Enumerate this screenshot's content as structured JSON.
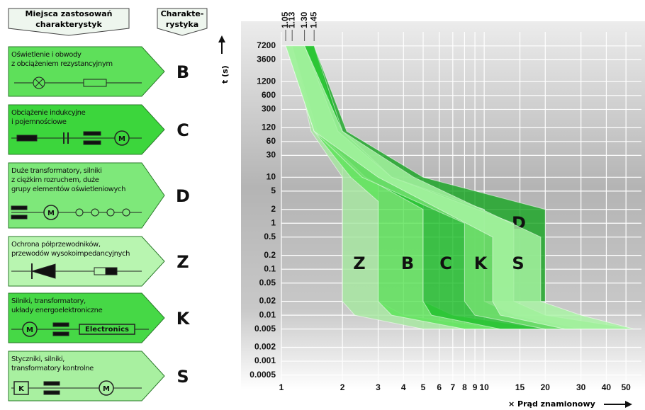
{
  "legend_panel": {
    "header_places": [
      "Miejsca zastosowań",
      "charakterystyk"
    ],
    "header_char": [
      "Charakte-",
      "rystyka"
    ],
    "rows": [
      {
        "lines": [
          "Oświetlenie i obwody",
          "z obciążeniem rezystancyjnym"
        ],
        "letter": "B",
        "icon_texts": []
      },
      {
        "lines": [
          "Obciążenie indukcyjne",
          "i pojemnościowe"
        ],
        "letter": "C",
        "icon_texts": [
          "M"
        ]
      },
      {
        "lines": [
          "Duże transformatory, silniki",
          "z ciężkim rozruchem, duże",
          "grupy elementów oświetleniowych"
        ],
        "letter": "D",
        "icon_texts": [
          "M"
        ]
      },
      {
        "lines": [
          "Ochrona półprzewodników,",
          "przewodów wysokoimpedancyjnych"
        ],
        "letter": "Z",
        "icon_texts": []
      },
      {
        "lines": [
          "Silniki, transformatory,",
          "układy energoelektroniczne"
        ],
        "letter": "K",
        "icon_texts": [
          "M",
          "Electronics"
        ]
      },
      {
        "lines": [
          "Styczniki, silniki,",
          "transformatory kontrolne"
        ],
        "letter": "S",
        "icon_texts": [
          "K",
          "M"
        ]
      }
    ]
  },
  "chart_data": {
    "type": "band",
    "y_label": "t (s)",
    "x_label": "× Prąd znamionowy",
    "log_x": true,
    "log_y": true,
    "grid": true,
    "xlim": [
      1,
      55
    ],
    "ylim": [
      0.0003,
      20000
    ],
    "xticks": [
      1,
      2,
      3,
      4,
      5,
      6,
      7,
      8,
      9,
      10,
      15,
      20,
      30,
      40,
      50
    ],
    "yticks": [
      7200,
      3600,
      1200,
      600,
      300,
      120,
      60,
      30,
      10,
      5,
      2,
      1,
      0.5,
      0.2,
      0.1,
      0.05,
      0.02,
      0.01,
      0.005,
      0.002,
      0.001,
      0.0005
    ],
    "top_ticks": [
      1.05,
      1.13,
      {
        "value": 1.3,
        "label": "1.30"
      },
      1.45
    ],
    "series": [
      {
        "name": "D",
        "color": "#1aa624",
        "t": [
          7200,
          100,
          10,
          2,
          0.02
        ],
        "x_min": [
          1.13,
          1.5,
          3,
          10,
          10
        ],
        "x_max": [
          1.45,
          2.1,
          5,
          20,
          20
        ]
      },
      {
        "name": "Z",
        "color": "#a6e8a0",
        "t": [
          7200,
          100,
          10,
          0.02,
          0.01,
          0.005
        ],
        "x_min": [
          1.13,
          1.4,
          2,
          2,
          2.3,
          5
        ],
        "x_max": [
          1.45,
          1.8,
          3,
          3,
          4,
          12
        ]
      },
      {
        "name": "B",
        "color": "#5ce458",
        "t": [
          7200,
          100,
          10,
          3,
          0.02,
          0.01,
          0.005
        ],
        "x_min": [
          1.13,
          1.45,
          2.2,
          3,
          3,
          3.5,
          8
        ],
        "x_max": [
          1.45,
          1.9,
          3,
          5,
          5,
          7,
          20
        ]
      },
      {
        "name": "C",
        "color": "#20c02c",
        "t": [
          7200,
          100,
          10,
          2,
          0.02,
          0.01,
          0.005
        ],
        "x_min": [
          1.13,
          1.5,
          2.6,
          5,
          5,
          5.5,
          12
        ],
        "x_max": [
          1.45,
          2,
          3.5,
          10,
          10,
          14,
          30
        ]
      },
      {
        "name": "K",
        "color": "#74e070",
        "t": [
          7200,
          100,
          10,
          1,
          0.02,
          0.01,
          0.005
        ],
        "x_min": [
          1.05,
          1.45,
          2.5,
          8,
          8,
          9,
          20
        ],
        "x_max": [
          1.3,
          1.9,
          3.5,
          14,
          14,
          20,
          55
        ]
      },
      {
        "name": "S",
        "color": "#a8f4a4",
        "t": [
          7200,
          100,
          10,
          0.5,
          0.02,
          0.01,
          0.005
        ],
        "x_min": [
          1.05,
          1.45,
          3,
          11,
          11,
          12,
          25
        ],
        "x_max": [
          1.3,
          2,
          4.5,
          19,
          19,
          30,
          55
        ]
      }
    ]
  }
}
